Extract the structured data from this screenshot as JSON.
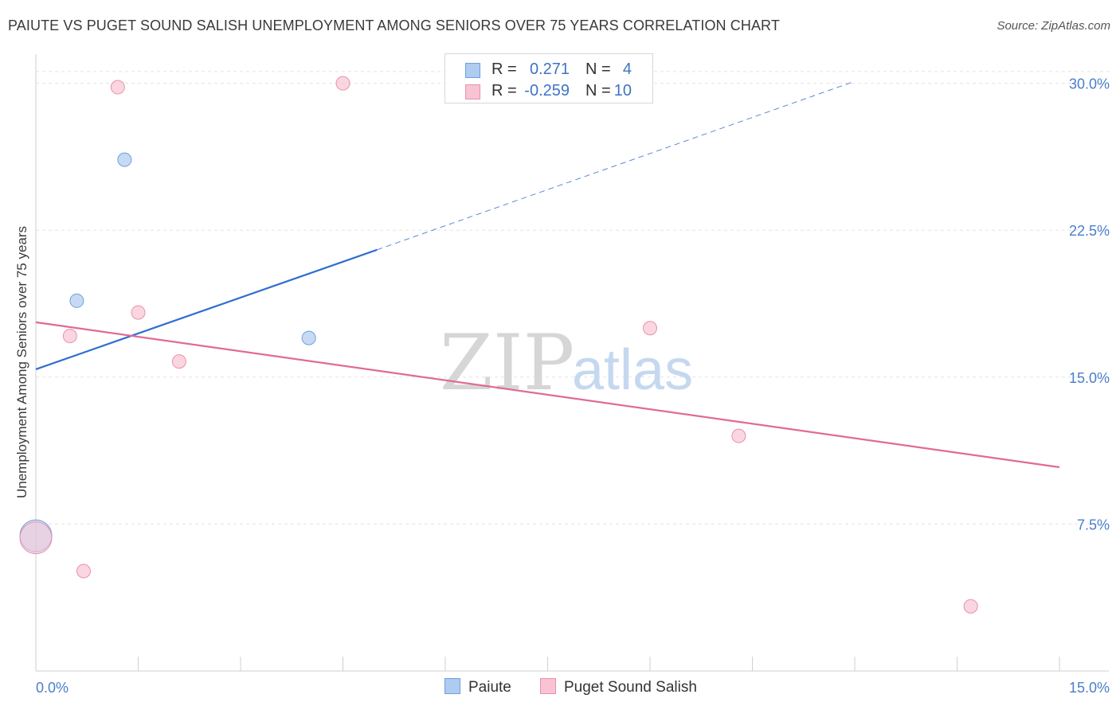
{
  "header": {
    "title": "PAIUTE VS PUGET SOUND SALISH UNEMPLOYMENT AMONG SENIORS OVER 75 YEARS CORRELATION CHART",
    "source": "Source: ZipAtlas.com"
  },
  "watermark": {
    "zip": "ZIP",
    "atlas": "atlas"
  },
  "legend": {
    "rows": [
      {
        "r_label": "R =",
        "r_value": "0.271",
        "n_label": "N =",
        "n_value": "4",
        "color": "#aecbf0",
        "border": "#6e9fdc"
      },
      {
        "r_label": "R =",
        "r_value": "-0.259",
        "n_label": "N =",
        "n_value": "10",
        "color": "#f8c4d3",
        "border": "#e991ad"
      }
    ]
  },
  "bottom_legend": {
    "items": [
      {
        "label": "Paiute",
        "color": "#aecbf0",
        "border": "#6e9fdc"
      },
      {
        "label": "Puget Sound Salish",
        "color": "#f8c4d3",
        "border": "#e991ad"
      }
    ]
  },
  "chart_data": {
    "type": "scatter",
    "title": "PAIUTE VS PUGET SOUND SALISH UNEMPLOYMENT AMONG SENIORS OVER 75 YEARS CORRELATION CHART",
    "xlabel": "",
    "ylabel": "Unemployment Among Seniors over 75 years",
    "xlim": [
      0,
      15
    ],
    "ylim": [
      0,
      31
    ],
    "x_tick_labels": [
      {
        "value": 0,
        "label": "0.0%"
      },
      {
        "value": 15,
        "label": "15.0%"
      }
    ],
    "y_tick_labels": [
      {
        "value": 7.5,
        "label": "7.5%"
      },
      {
        "value": 15,
        "label": "15.0%"
      },
      {
        "value": 22.5,
        "label": "22.5%"
      },
      {
        "value": 30,
        "label": "30.0%"
      }
    ],
    "series": [
      {
        "name": "Paiute",
        "color": "#aecbf0",
        "edge": "#6e9fdc",
        "line_color": "#2f6fcf",
        "points": [
          {
            "x": 1.3,
            "y": 26.1
          },
          {
            "x": 0.6,
            "y": 18.9
          },
          {
            "x": 4.0,
            "y": 17.0
          },
          {
            "x": 0.0,
            "y": 6.9,
            "big": true
          }
        ],
        "trend": {
          "x0": 0.0,
          "y0": 15.4,
          "x1": 5.0,
          "y1": 21.5,
          "dash_to_x": 12.0,
          "dash_to_y": 30.1
        }
      },
      {
        "name": "Puget Sound Salish",
        "color": "#f8c4d3",
        "edge": "#e991ad",
        "line_color": "#e06a96",
        "points": [
          {
            "x": 1.2,
            "y": 29.8
          },
          {
            "x": 4.5,
            "y": 30.0
          },
          {
            "x": 0.5,
            "y": 17.1
          },
          {
            "x": 1.5,
            "y": 18.3
          },
          {
            "x": 2.1,
            "y": 15.8
          },
          {
            "x": 9.0,
            "y": 17.5
          },
          {
            "x": 10.3,
            "y": 12.0
          },
          {
            "x": 0.7,
            "y": 5.1
          },
          {
            "x": 13.7,
            "y": 3.3
          },
          {
            "x": 0.0,
            "y": 6.8,
            "big": true
          }
        ],
        "trend": {
          "x0": 0.0,
          "y0": 17.8,
          "x1": 15.0,
          "y1": 10.4
        }
      }
    ]
  }
}
